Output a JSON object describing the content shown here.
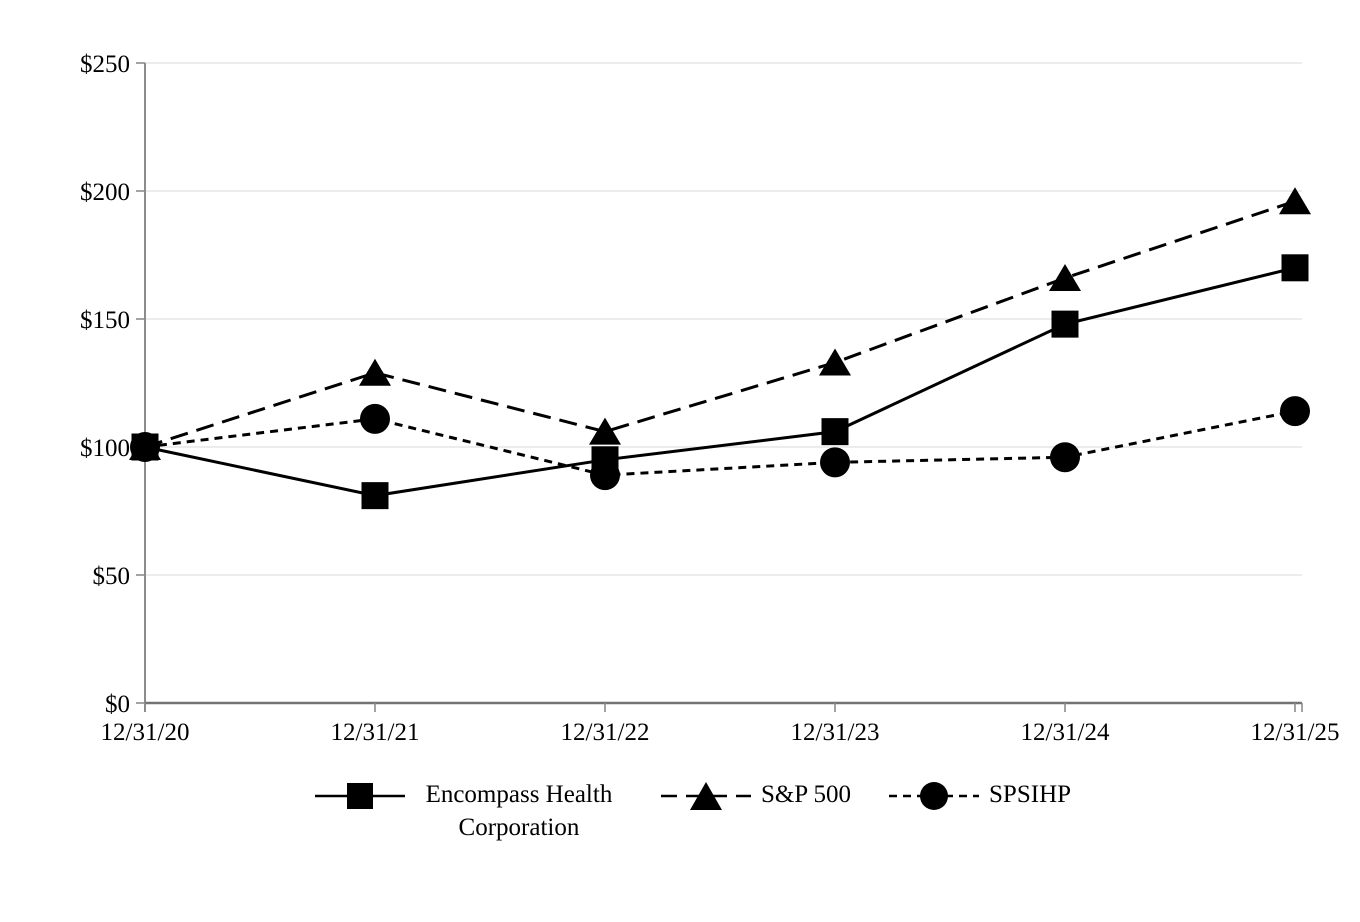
{
  "chart_data": {
    "type": "line",
    "title": "",
    "categories": [
      "12/31/20",
      "12/31/21",
      "12/31/22",
      "12/31/23",
      "12/31/24",
      "12/31/25"
    ],
    "series": [
      {
        "name": "Encompass Health Corporation",
        "marker": "square",
        "marker_icon": "square-marker-icon",
        "line_style": "solid",
        "values": [
          100,
          81,
          95,
          106,
          148,
          170
        ]
      },
      {
        "name": "S&P 500",
        "marker": "triangle",
        "marker_icon": "triangle-marker-icon",
        "line_style": "long-dash",
        "values": [
          100,
          129,
          106,
          133,
          166,
          196
        ]
      },
      {
        "name": "SPSIHP",
        "marker": "circle",
        "marker_icon": "circle-marker-icon",
        "line_style": "short-dash",
        "values": [
          100,
          111,
          89,
          94,
          96,
          114
        ]
      }
    ],
    "y_tick_labels": [
      "$0",
      "$50",
      "$100",
      "$150",
      "$200",
      "$250"
    ],
    "y_tick_values": [
      0,
      50,
      100,
      150,
      200,
      250
    ],
    "ylim": [
      0,
      250
    ],
    "grid": "horizontal",
    "legend_position": "bottom",
    "colors": {
      "series": "#000000",
      "gridline": "#e9e9e9",
      "y_axis": "#8c8c8c",
      "x_axis": "#737373",
      "tick": "#8c8c8c",
      "text": "#000000",
      "background": "#ffffff"
    }
  }
}
